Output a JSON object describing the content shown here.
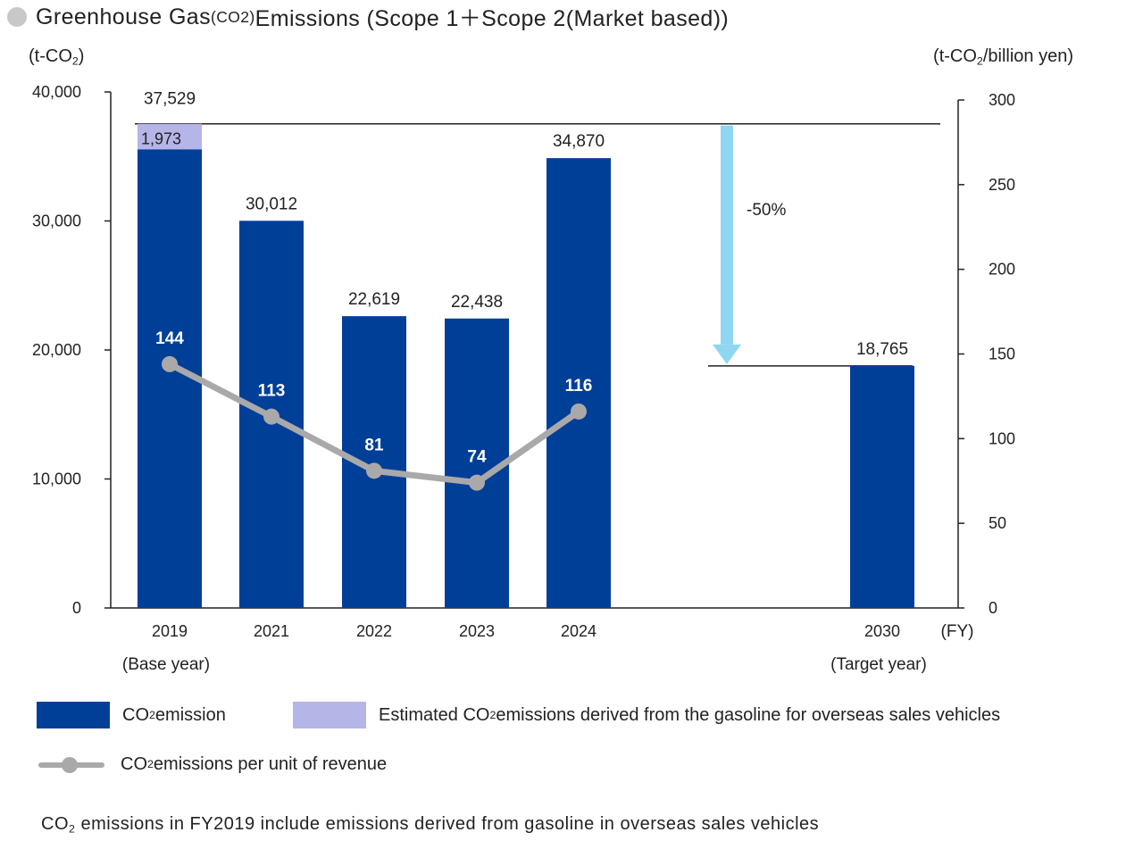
{
  "title": {
    "prefix": "Greenhouse Gas ",
    "gas_open": "(CO",
    "gas_sub": "2",
    "gas_close": ")",
    "suffix": " Emissions (Scope 1＋Scope 2(Market based))"
  },
  "units": {
    "left_main": "(t-CO",
    "left_sub": "2",
    "left_end": ")",
    "right_main": "(t-CO",
    "right_sub": "2",
    "right_end": "/billion yen)"
  },
  "legend": {
    "emission_main": "CO",
    "emission_sub": "2",
    "emission_rest": " emission",
    "estimated_main": "Estimated CO",
    "estimated_sub": "2",
    "estimated_rest": " emissions derived from the gasoline for overseas sales vehicles",
    "per_unit_main": "CO",
    "per_unit_sub": "2",
    "per_unit_rest": " emissions per unit of revenue"
  },
  "note": {
    "main": "CO",
    "sub": "2",
    "rest": " emissions in FY2019 include emissions derived from gasoline in overseas sales vehicles"
  },
  "chart_data": {
    "type": "bar",
    "categories": [
      "2019",
      "2021",
      "2022",
      "2023",
      "2024",
      "2030"
    ],
    "category_sublabels": [
      "(Base year)",
      "",
      "",
      "",
      "",
      "(Target year)"
    ],
    "x_unit_label": "(FY)",
    "y_left": {
      "ylim": [
        0,
        40000
      ],
      "ticks": [
        0,
        10000,
        20000,
        30000,
        40000
      ],
      "tick_labels": [
        "0",
        "10,000",
        "20,000",
        "30,000",
        "40,000"
      ]
    },
    "y_right": {
      "ylim": [
        0,
        300
      ],
      "ticks": [
        0,
        50,
        100,
        150,
        200,
        250,
        300
      ],
      "tick_labels": [
        "0",
        "50",
        "100",
        "150",
        "200",
        "250",
        "300"
      ]
    },
    "series": [
      {
        "type": "bar",
        "axis": "left",
        "color": "#003f98",
        "values": [
          35556,
          30012,
          22619,
          22438,
          34870,
          18765
        ]
      },
      {
        "type": "bar-stacked",
        "axis": "left",
        "color": "#b5b5e8",
        "values": [
          1973,
          0,
          0,
          0,
          0,
          0
        ]
      },
      {
        "type": "line",
        "axis": "right",
        "color": "#a9a9a9",
        "values": [
          144,
          113,
          81,
          74,
          116,
          null
        ]
      }
    ],
    "bar_total_labels": [
      "37,529",
      "30,012",
      "22,619",
      "22,438",
      "34,870",
      "18,765"
    ],
    "stack_labels": [
      "1,973",
      "",
      "",
      "",
      "",
      ""
    ],
    "line_labels": [
      "144",
      "113",
      "81",
      "74",
      "116",
      ""
    ],
    "reference_value": 37529,
    "target_value": 18765,
    "reduction_arrow": {
      "label": "-50%",
      "color": "#8fd6f2",
      "from": 37529,
      "to": 18765
    }
  }
}
